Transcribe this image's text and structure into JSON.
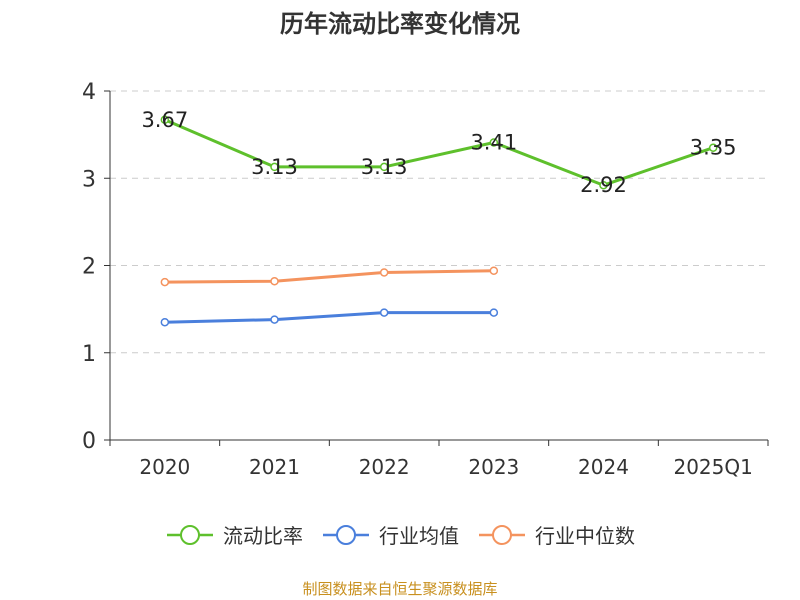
{
  "title": "历年流动比率变化情况",
  "source": "制图数据来自恒生聚源数据库",
  "chart_data": {
    "type": "line",
    "categories": [
      "2020",
      "2021",
      "2022",
      "2023",
      "2024",
      "2025Q1"
    ],
    "ylim": [
      0,
      4
    ],
    "yticks": [
      0,
      1,
      2,
      3,
      4
    ],
    "grid": true,
    "legend_position": "bottom",
    "series": [
      {
        "name": "流动比率",
        "values": [
          3.67,
          3.13,
          3.13,
          3.41,
          2.92,
          3.35
        ],
        "color": "#5ec02c",
        "labels": true
      },
      {
        "name": "行业均值",
        "values": [
          1.35,
          1.38,
          1.46,
          1.46,
          null,
          null
        ],
        "color": "#4a7fdc",
        "labels": false
      },
      {
        "name": "行业中位数",
        "values": [
          1.81,
          1.82,
          1.92,
          1.94,
          null,
          null
        ],
        "color": "#f4935e",
        "labels": false
      }
    ]
  }
}
